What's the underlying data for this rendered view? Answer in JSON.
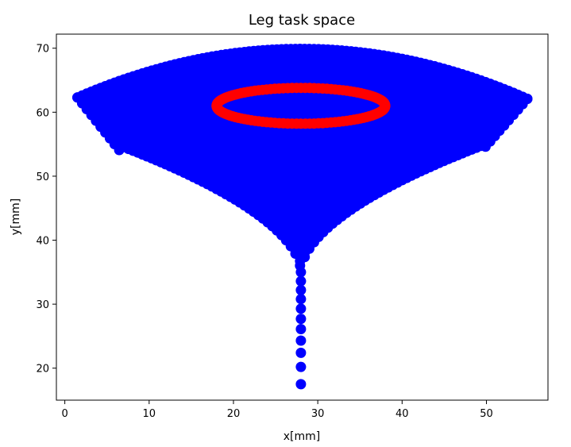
{
  "chart_data": {
    "type": "scatter",
    "title": "Leg task space",
    "xlabel": "x[mm]",
    "ylabel": "y[mm]",
    "xlim": [
      -1.0,
      57.3
    ],
    "ylim": [
      15.0,
      72.2
    ],
    "xticks": [
      0,
      10,
      20,
      30,
      40,
      50
    ],
    "yticks": [
      20,
      30,
      40,
      50,
      60,
      70
    ],
    "grid": false,
    "series": [
      {
        "color": "#0000ff",
        "marker": "circle",
        "shape": "workspace",
        "description_points": {
          "upper_arc": {
            "x_min": 1.5,
            "x_max": 55.0,
            "y_left": 62.3,
            "y_peak": 69.9,
            "x_peak": 28.0
          },
          "lower_left_corner": {
            "x": 6.5,
            "y": 54.0
          },
          "lower_right_corner": {
            "x": 49.5,
            "y": 54.0
          },
          "stem_tip": {
            "x": 28.0,
            "y": 17.5
          },
          "stem_dots_y": [
            17.5,
            20.2,
            22.4,
            24.3,
            26.1,
            27.7,
            29.3,
            30.8,
            32.2,
            33.6,
            35.0
          ]
        }
      },
      {
        "color": "#ff0000",
        "marker": "circle",
        "shape": "ellipse",
        "center": {
          "x": 28.0,
          "y": 61.0
        },
        "radius_x": 10.0,
        "radius_y": 2.8
      }
    ]
  }
}
